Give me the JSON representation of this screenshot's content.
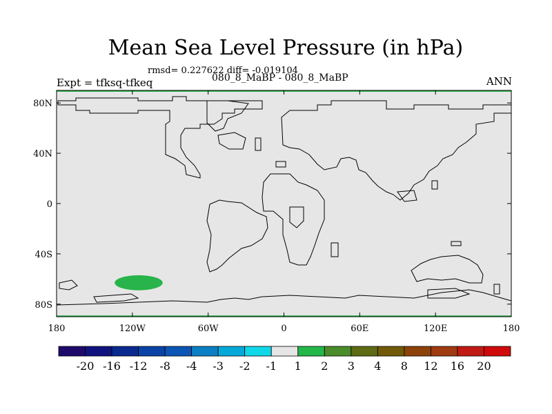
{
  "chart_data": {
    "type": "heatmap",
    "title": "Mean Sea Level Pressure (in hPa)",
    "stats": "rmsd= 0.227622 diff= -0.019104",
    "runs": "080_8_MaBP - 080_8_MaBP",
    "expt": "Expt = tfksq-tfkeq",
    "season": "ANN",
    "xlabels": [
      "180",
      "120W",
      "60W",
      "0",
      "60E",
      "120E",
      "180"
    ],
    "xvalues": [
      -180,
      -120,
      -60,
      0,
      60,
      120,
      180
    ],
    "ylabels": [
      "80N",
      "40N",
      "0",
      "40S",
      "80S"
    ],
    "yvalues": [
      80,
      40,
      0,
      -40,
      -80
    ],
    "xlim": [
      -180,
      180
    ],
    "ylim": [
      -90,
      90
    ],
    "background_fill_range": [
      -1,
      1
    ],
    "anomaly_regions": [
      {
        "name": "south-pacific-positive-anomaly",
        "bin": "1 to 2",
        "lon_range": [
          -134,
          -96
        ],
        "lat_range": [
          -69,
          -57
        ]
      },
      {
        "name": "arctic-boundary-positive-anomaly",
        "bin": "1 to 2",
        "lon_range": [
          -180,
          180
        ],
        "lat_range": [
          89,
          90
        ]
      },
      {
        "name": "antarctic-boundary-positive-anomaly",
        "bin": "1 to 2",
        "lon_range": [
          -180,
          180
        ],
        "lat_range": [
          -90,
          -89
        ]
      }
    ],
    "colorbar": {
      "labels": [
        "-20",
        "-16",
        "-12",
        "-8",
        "-4",
        "-3",
        "-2",
        "-1",
        "1",
        "2",
        "3",
        "4",
        "8",
        "12",
        "16",
        "20"
      ],
      "colors": [
        "#1f0a6b",
        "#11137f",
        "#0b2a90",
        "#0a43a6",
        "#0b55b4",
        "#0a7fc3",
        "#05a9d9",
        "#10d8e8",
        "#e6e6e6",
        "#23b649",
        "#4a8c2a",
        "#5e6a14",
        "#705a08",
        "#8c4209",
        "#a03a10",
        "#c01a12",
        "#d00a0a"
      ]
    },
    "colors": {
      "map_background": "#e6e6e6",
      "anomaly_fill": "#28b44a",
      "coastline": "#000000"
    }
  }
}
